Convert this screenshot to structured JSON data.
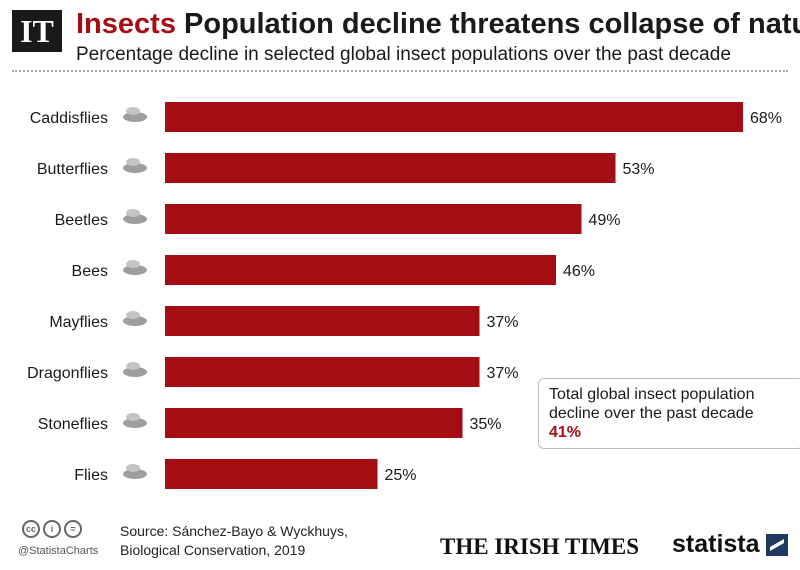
{
  "header": {
    "logo_text": "IT",
    "title_accent": "Insects",
    "title_rest": " Population decline threatens collapse of nature",
    "subtitle": "Percentage decline in selected global insect populations over the past decade"
  },
  "chart_data": {
    "type": "bar",
    "orientation": "horizontal",
    "categories": [
      "Caddisflies",
      "Butterflies",
      "Beetles",
      "Bees",
      "Mayflies",
      "Dragonflies",
      "Stoneflies",
      "Flies"
    ],
    "values": [
      68,
      53,
      49,
      46,
      37,
      37,
      35,
      25
    ],
    "value_suffix": "%",
    "icons": [
      "caddisfly-icon",
      "butterfly-icon",
      "beetle-icon",
      "bee-icon",
      "mayfly-icon",
      "dragonfly-icon",
      "stonefly-icon",
      "fly-icon"
    ],
    "bar_color": "#a50d14",
    "xlim": [
      0,
      100
    ],
    "grid": false
  },
  "callout": {
    "text": "Total global insect population decline over the past decade",
    "value": "41%"
  },
  "footer": {
    "license_icons": [
      "cc-icon",
      "attribution-icon",
      "no-derivatives-icon"
    ],
    "handle": "@StatistaCharts",
    "source_line1": "Source: Sánchez-Bayo & Wyckhuys,",
    "source_line2": "Biological Conservation, 2019",
    "irish_times": "THE IRISH TIMES",
    "statista": "statista"
  }
}
